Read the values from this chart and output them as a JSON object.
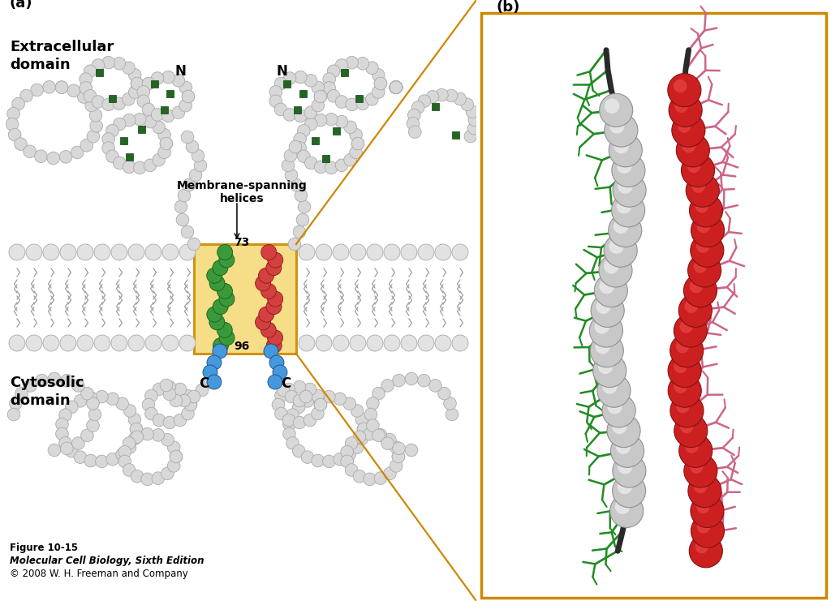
{
  "bg": "#ffffff",
  "bead_gray": "#d8d8d8",
  "bead_gray_edge": "#aaaaaa",
  "bead_green_fill": "#3a9a3a",
  "bead_green_edge": "#1a5a1a",
  "bead_red_fill": "#d44040",
  "bead_red_edge": "#8b1a1a",
  "bead_blue_fill": "#4499dd",
  "bead_blue_edge": "#224488",
  "sugar_green": "#226622",
  "mem_head_fill": "#e2e2e2",
  "mem_head_edge": "#aaaaaa",
  "mem_tail_color": "#999999",
  "box_fill": "#f5da7a",
  "box_edge": "#cc8800",
  "connector_color": "#cc8800",
  "caption1": "Figure 10-15",
  "caption2": "Molecular Cell Biology, Sixth Edition",
  "caption3": "© 2008 W. H. Freeman and Company",
  "pb_bg": "#ffffff",
  "pb_border": "#cc8800",
  "pb_silver": "#c8c8c8",
  "pb_silver_edge": "#909090",
  "pb_red": "#cc2020",
  "pb_red_edge": "#881010",
  "pb_green": "#228B22",
  "pb_pink": "#cc6688",
  "pb_backbone": "#2a2a2a",
  "label_a": "(a)",
  "label_b": "(b)",
  "label_N": "N",
  "label_C": "C",
  "label_73": "73",
  "label_96": "96",
  "label_extracell": "Extracellular\ndomain",
  "label_cytosol": "Cytosolic\ndomain",
  "label_membrane": "Membrane-spanning\nhelices"
}
